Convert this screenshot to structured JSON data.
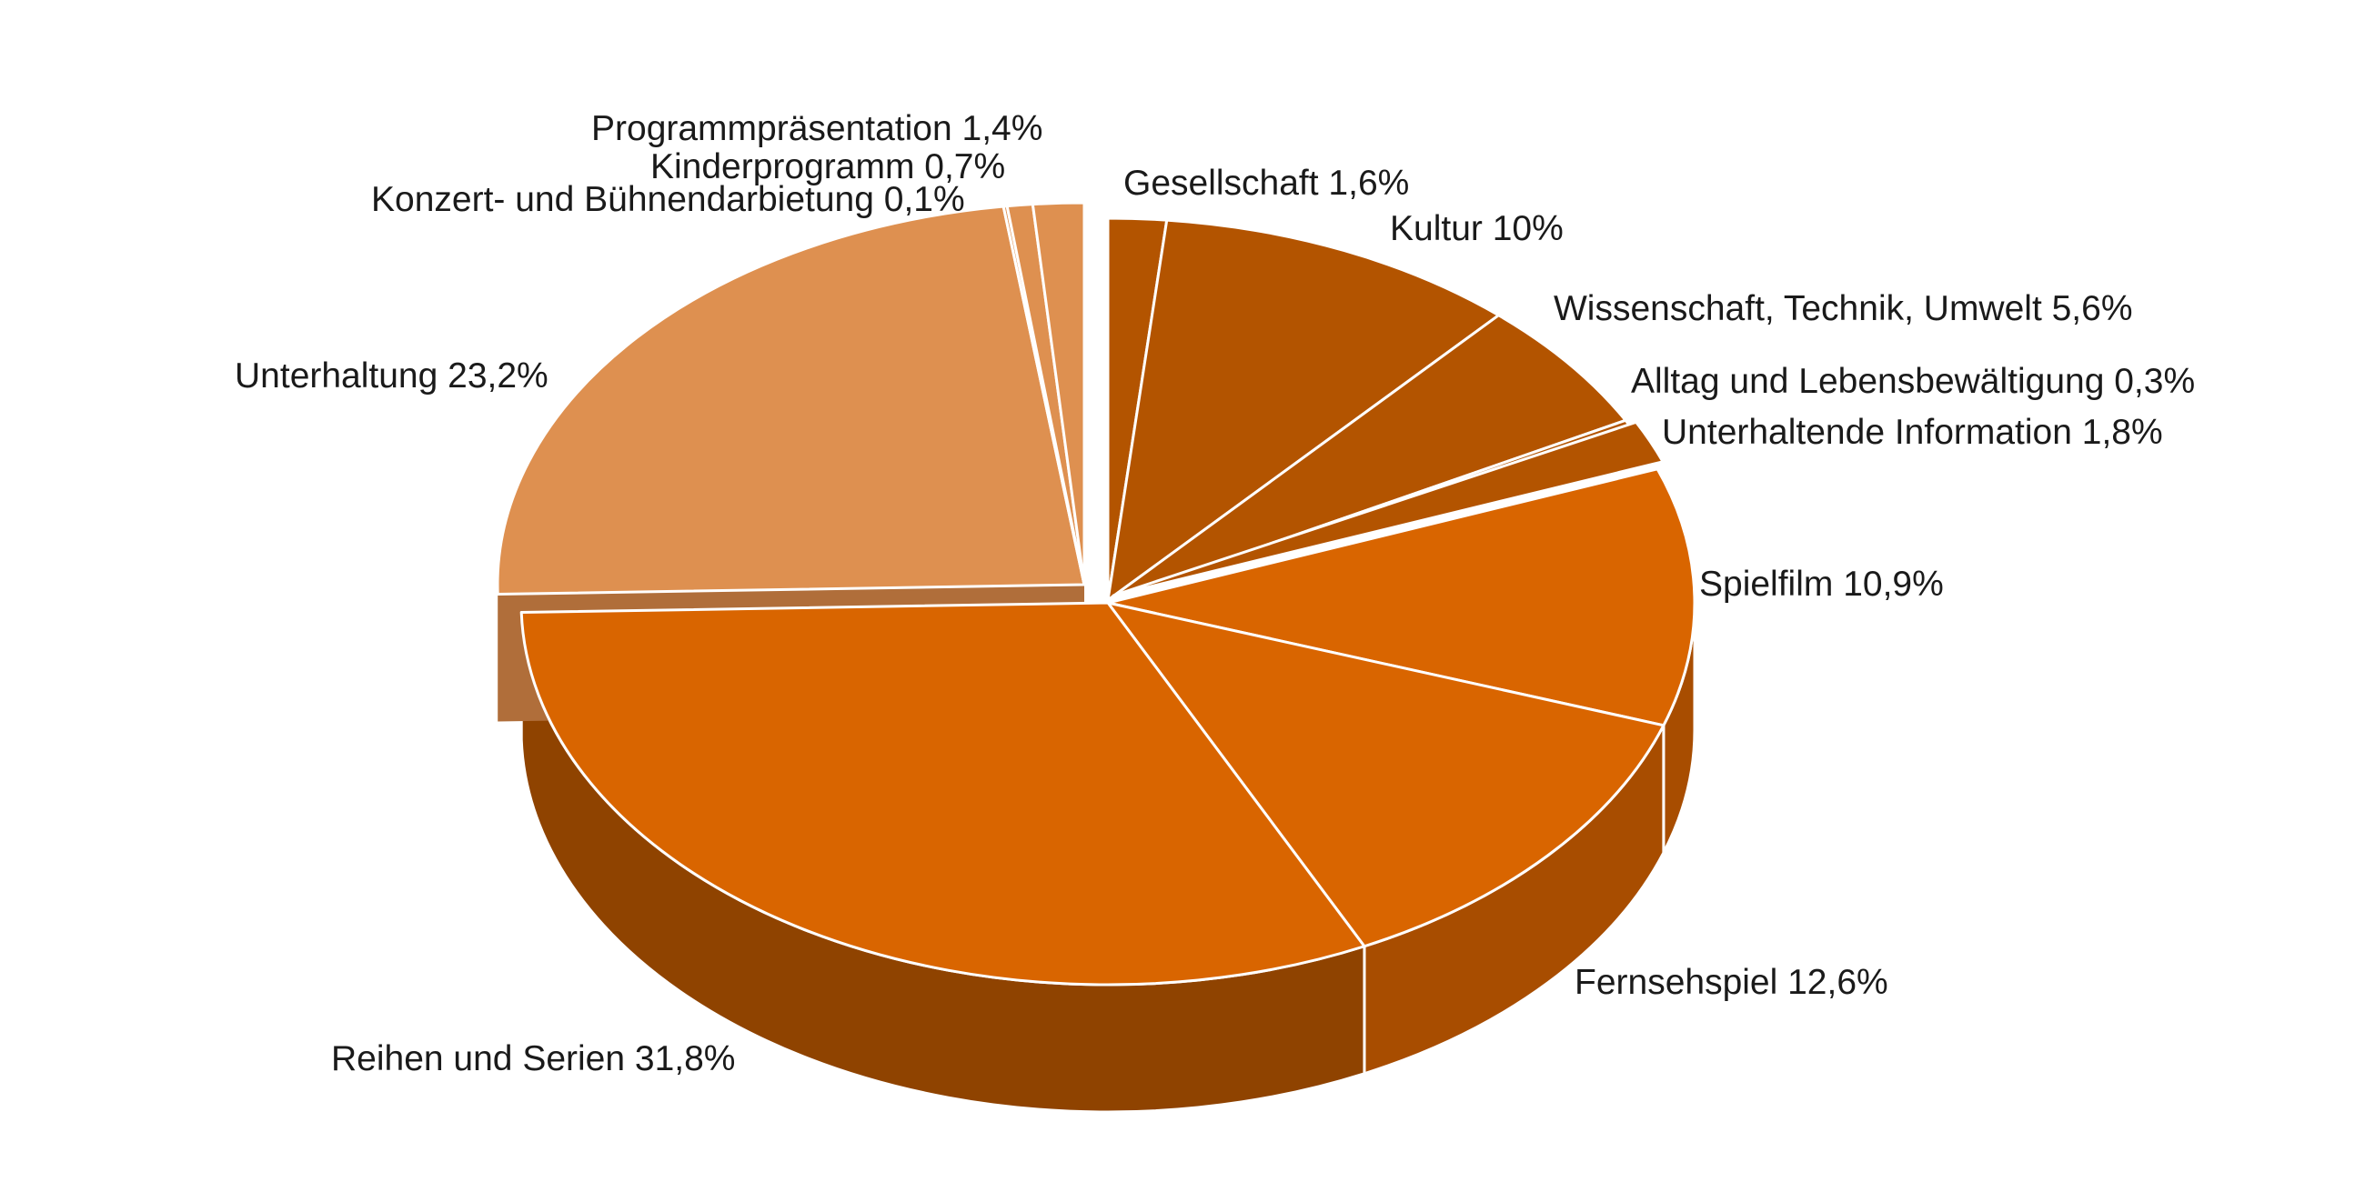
{
  "chart_data": {
    "type": "pie",
    "title": "",
    "start_angle_deg": 0,
    "direction": "clockwise",
    "slices": [
      {
        "label": "Gesellschaft",
        "value": 1.6,
        "display": "Gesellschaft  1,6%",
        "color": "#B35400",
        "side": "#8C4000"
      },
      {
        "label": "Kultur",
        "value": 10,
        "display": "Kultur  10%",
        "color": "#B35400",
        "side": "#8C4000"
      },
      {
        "label": "Wissenschaft, Technik, Umwelt",
        "value": 5.6,
        "display": "Wissenschaft, Technik, Umwelt  5,6%",
        "color": "#B35400",
        "side": "#8C4000"
      },
      {
        "label": "Alltag und Lebensbewältigung",
        "value": 0.3,
        "display": "Alltag und Lebensbewältigung  0,3%",
        "color": "#B35400",
        "side": "#8C4000"
      },
      {
        "label": "Unterhaltende Information",
        "value": 1.8,
        "display": "Unterhaltende Information  1,8%",
        "color": "#B35400",
        "side": "#8C4000"
      },
      {
        "label": "Spielfilm",
        "value": 10.9,
        "display": "Spielfilm  10,9%",
        "color": "#D96500",
        "side": "#A84D00"
      },
      {
        "label": "Fernsehspiel",
        "value": 12.6,
        "display": "Fernsehspiel  12,6%",
        "color": "#D96500",
        "side": "#A84D00"
      },
      {
        "label": "Reihen und Serien",
        "value": 31.8,
        "display": "Reihen und Serien  31,8%",
        "color": "#D96500",
        "side": "#8F4300"
      },
      {
        "label": "Unterhaltung",
        "value": 23.2,
        "display": "Unterhaltung  23,2%",
        "color": "#DE9050",
        "side": "#B06E3A"
      },
      {
        "label": "Konzert- und Bühnendarbietung",
        "value": 0.1,
        "display": "Konzert- und Bühnendarbietung  0,1%",
        "color": "#DE9050",
        "side": "#B06E3A"
      },
      {
        "label": "Kinderprogramm",
        "value": 0.7,
        "display": "Kinderprogramm 0,7%",
        "color": "#DE9050",
        "side": "#B06E3A"
      },
      {
        "label": "Programmpräsentation",
        "value": 1.4,
        "display": "Programmpräsentation 1,4%",
        "color": "#DE9050",
        "side": "#B06E3A"
      }
    ]
  }
}
